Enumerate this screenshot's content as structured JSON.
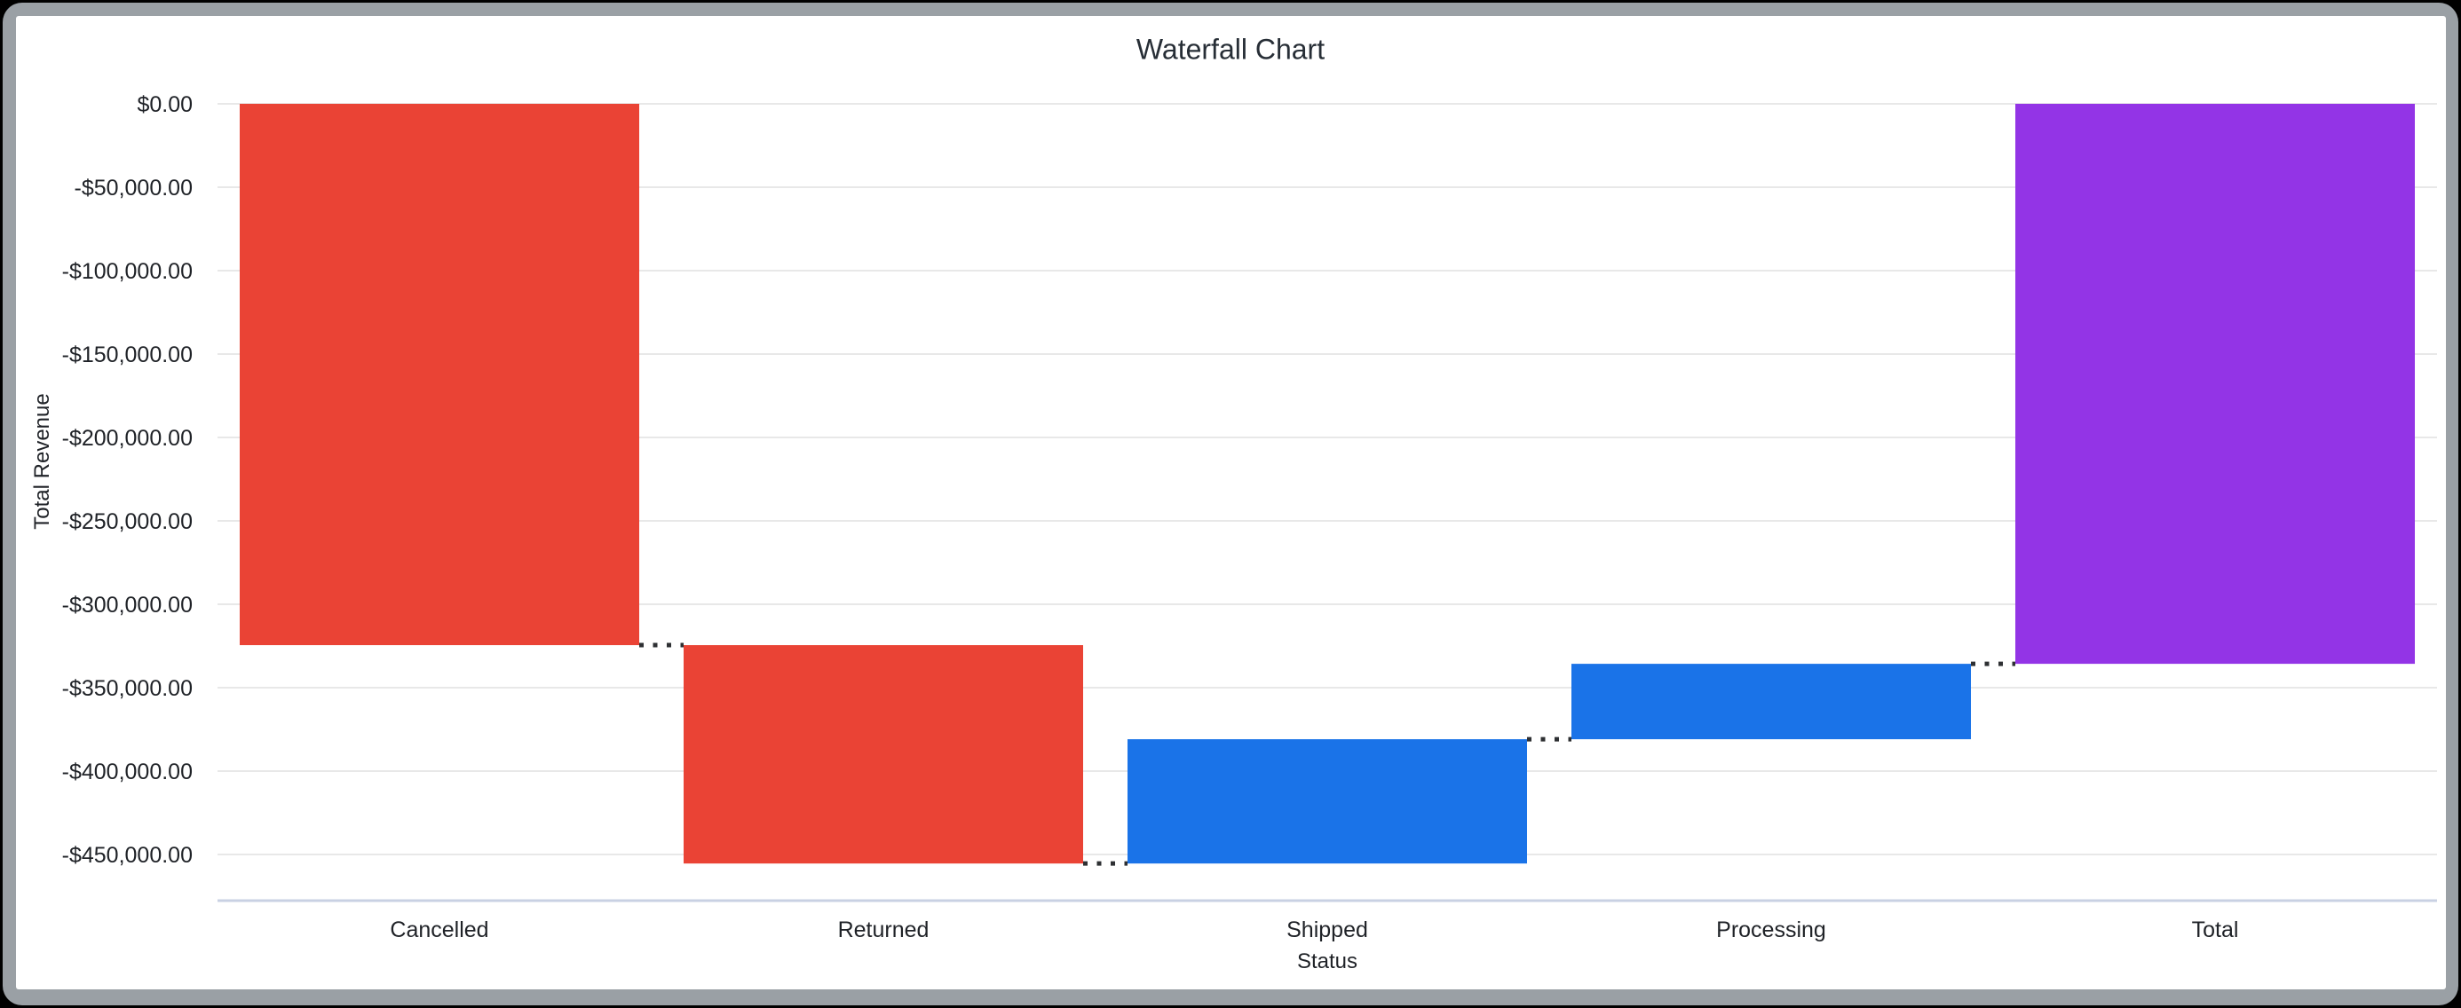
{
  "window": {
    "page_bg": "#000000",
    "frame_color": "#9aa0a5",
    "canvas_bg": "#ffffff"
  },
  "chart_data": {
    "type": "bar",
    "variant": "waterfall",
    "title": "Waterfall Chart",
    "xlabel": "Status",
    "ylabel": "Total Revenue",
    "categories": [
      "Cancelled",
      "Returned",
      "Shipped",
      "Processing",
      "Total"
    ],
    "bars": [
      {
        "label": "Cancelled",
        "start": 0,
        "end": -324500,
        "delta": -324500,
        "kind": "decrease"
      },
      {
        "label": "Returned",
        "start": -324500,
        "end": -455400,
        "delta": -130900,
        "kind": "decrease"
      },
      {
        "label": "Shipped",
        "start": -455400,
        "end": -380900,
        "delta": 74500,
        "kind": "increase"
      },
      {
        "label": "Processing",
        "start": -380900,
        "end": -335700,
        "delta": 45200,
        "kind": "increase"
      },
      {
        "label": "Total",
        "start": 0,
        "end": -335700,
        "delta": -335700,
        "kind": "total"
      }
    ],
    "colors": {
      "decrease": "#ea4335",
      "increase": "#1a73e8",
      "total": "#9334e6"
    },
    "y_axis": {
      "ticks": [
        {
          "value": 0,
          "label": "$0.00"
        },
        {
          "value": -50000,
          "label": "-$50,000.00"
        },
        {
          "value": -100000,
          "label": "-$100,000.00"
        },
        {
          "value": -150000,
          "label": "-$150,000.00"
        },
        {
          "value": -200000,
          "label": "-$200,000.00"
        },
        {
          "value": -250000,
          "label": "-$250,000.00"
        },
        {
          "value": -300000,
          "label": "-$300,000.00"
        },
        {
          "value": -350000,
          "label": "-$350,000.00"
        },
        {
          "value": -400000,
          "label": "-$400,000.00"
        },
        {
          "value": -450000,
          "label": "-$450,000.00"
        }
      ],
      "range": [
        -477500,
        0
      ]
    },
    "grid": true,
    "legend": "none",
    "connectors": "dotted",
    "styles": {
      "grid_color": "#e8e8e8",
      "axis_line_color": "#c9d1e3",
      "connector_color": "#2e3033",
      "tick_text_color": "#1f2227",
      "title_color": "#272e36"
    }
  }
}
